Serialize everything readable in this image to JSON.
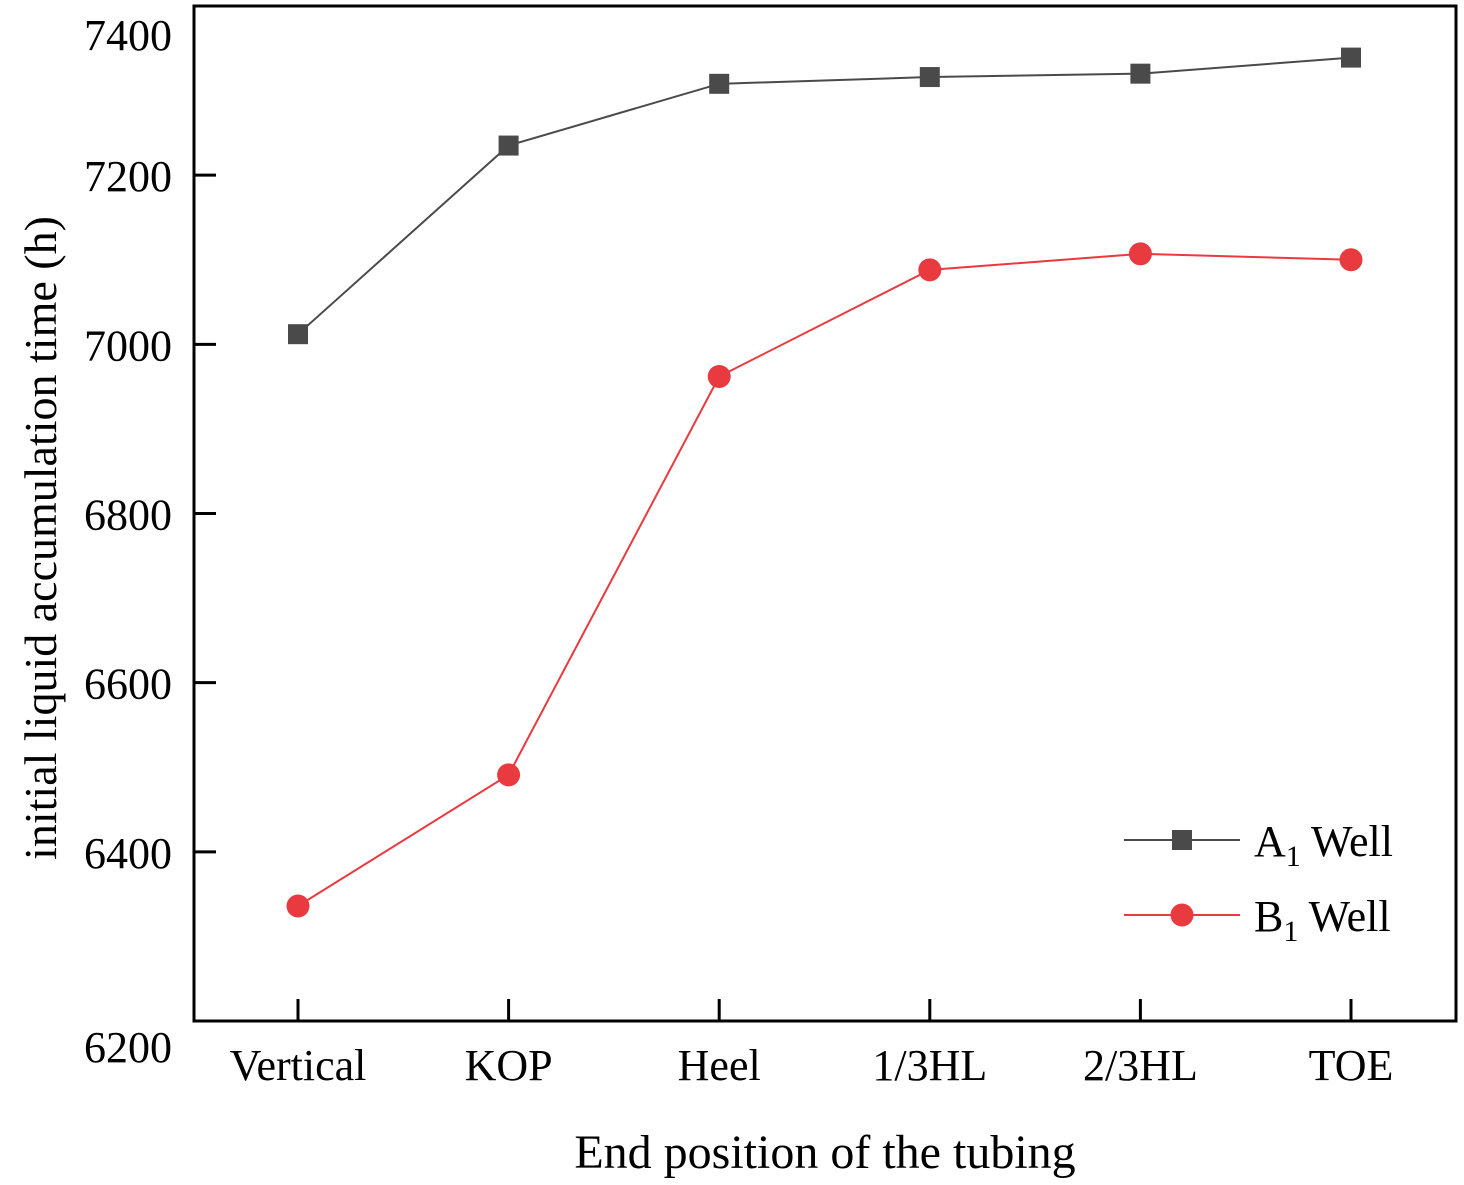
{
  "chart_data": {
    "type": "line",
    "title": "",
    "xlabel": "End position of the tubing",
    "ylabel": "initial liquid accumulation time  (h)",
    "categories": [
      "Vertical",
      "KOP",
      "Heel",
      "1/3HL",
      "2/3HL",
      "TOE"
    ],
    "ylim": [
      6200,
      7400
    ],
    "yticks": [
      6200,
      6400,
      6600,
      6800,
      7000,
      7200,
      7400
    ],
    "grid": false,
    "legend_position": "bottom-right",
    "series": [
      {
        "name": "A",
        "subscript": "1",
        "suffix": " Well",
        "marker": "square",
        "color": "#4a4a4a",
        "values": [
          7012,
          7235,
          7308,
          7316,
          7320,
          7339
        ]
      },
      {
        "name": "B",
        "subscript": "1",
        "suffix": " Well",
        "marker": "circle",
        "color": "#e83a3f",
        "values": [
          6336,
          6491,
          6962,
          7088,
          7107,
          7100
        ]
      }
    ]
  }
}
